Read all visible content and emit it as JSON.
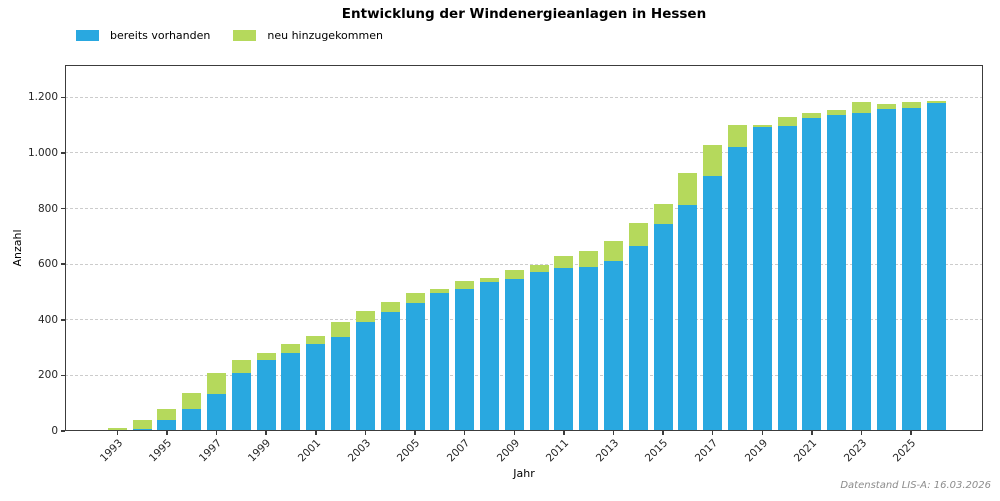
{
  "title": "Entwicklung der Windenergieanlagen in Hessen",
  "footnote": "Datenstand LIS-A: 16.03.2026",
  "colors": {
    "existing": "#29a8e0",
    "new": "#b5d95c",
    "grid": "#cccccc",
    "spine": "#3c3c3c",
    "footnote_text": "#8c8c8c"
  },
  "chart_data": {
    "type": "bar",
    "stacked": true,
    "title": "Entwicklung der Windenergieanlagen in Hessen",
    "xlabel": "Jahr",
    "ylabel": "Anzahl",
    "legend_position": "top-left",
    "grid": "horizontal-dashed",
    "ylim": [
      0,
      1316
    ],
    "categories": [
      1993,
      1994,
      1995,
      1996,
      1997,
      1998,
      1999,
      2000,
      2001,
      2002,
      2003,
      2004,
      2005,
      2006,
      2007,
      2008,
      2009,
      2010,
      2011,
      2012,
      2013,
      2014,
      2015,
      2016,
      2017,
      2018,
      2019,
      2020,
      2021,
      2022,
      2023,
      2024,
      2025,
      2026
    ],
    "series": [
      {
        "name": "bereits vorhanden",
        "color": "#29a8e0",
        "values": [
          2,
          8,
          38,
          79,
          134,
          208,
          256,
          280,
          312,
          337,
          392,
          428,
          462,
          495,
          512,
          537,
          545,
          573,
          586,
          590,
          612,
          664,
          745,
          813,
          918,
          1020,
          1095,
          1098,
          1126,
          1136,
          1145,
          1157,
          1162,
          1180
        ]
      },
      {
        "name": "neu hinzugekommen",
        "color": "#b5d95c",
        "values": [
          8,
          30,
          42,
          56,
          75,
          48,
          25,
          33,
          28,
          56,
          38,
          36,
          35,
          17,
          26,
          14,
          33,
          25,
          42,
          57,
          72,
          84,
          71,
          115,
          110,
          82,
          4,
          30,
          16,
          17,
          40,
          18,
          21,
          8
        ]
      }
    ],
    "yticks": [
      0,
      200,
      400,
      600,
      800,
      1000,
      1200
    ],
    "ytick_labels": [
      "0",
      "200",
      "400",
      "600",
      "800",
      "1.000",
      "1.200"
    ],
    "xtick_step": 2,
    "xtick_labels": [
      "1993",
      "1995",
      "1997",
      "1999",
      "2001",
      "2003",
      "2005",
      "2007",
      "2009",
      "2011",
      "2013",
      "2015",
      "2017",
      "2019",
      "2021",
      "2023",
      "2025"
    ]
  }
}
